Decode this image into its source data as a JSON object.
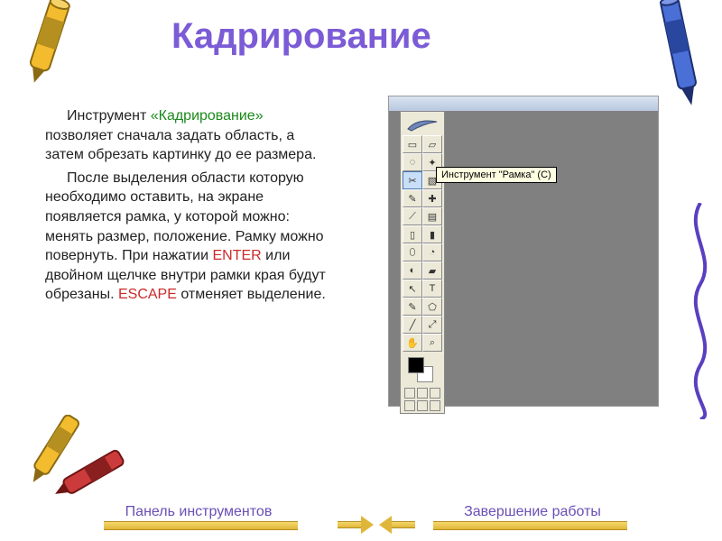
{
  "title": "Кадрирование",
  "para1_pre": "Инструмент ",
  "para1_green": "«Кадрирование»",
  "para1_post": " позволяет сначала задать область, а затем обрезать картинку до ее размера.",
  "para2_a": "После выделения области которую необходимо оставить, на экране появляется рамка, у которой можно: менять размер, положение. Рамку можно повернуть. При нажатии ",
  "para2_enter": "ENTER",
  "para2_b": " или двойном щелчке внутри рамки края будут обрезаны. ",
  "para2_escape": "ESCAPE",
  "para2_c": " отменяет выделение.",
  "tooltip": "Инструмент \"Рамка\" (C)",
  "nav_prev": "Панель инструментов",
  "nav_next": "Завершение работы",
  "colors": {
    "title": "#7b5bd6",
    "green": "#1a8a1a",
    "red": "#cc2a2a",
    "nav": "#6a4fb5",
    "gold": "#e0b63a",
    "tooltip_bg": "#ffffe1",
    "screenshot_bg": "#808080",
    "toolbox_bg": "#ece9d8"
  },
  "toolbox_glyphs": [
    [
      "▭",
      "▱"
    ],
    [
      "◌",
      "✦"
    ],
    [
      "✂",
      "▧"
    ],
    [
      "✎",
      "✚"
    ],
    [
      "⟋",
      "▤"
    ],
    [
      "▯",
      "▮"
    ],
    [
      "⬯",
      "◔"
    ],
    [
      "◐",
      "▰"
    ],
    [
      "↖",
      "T"
    ],
    [
      "✎",
      "⬠"
    ],
    [
      "╱",
      "⤢"
    ],
    [
      "✋",
      "⌕"
    ]
  ]
}
